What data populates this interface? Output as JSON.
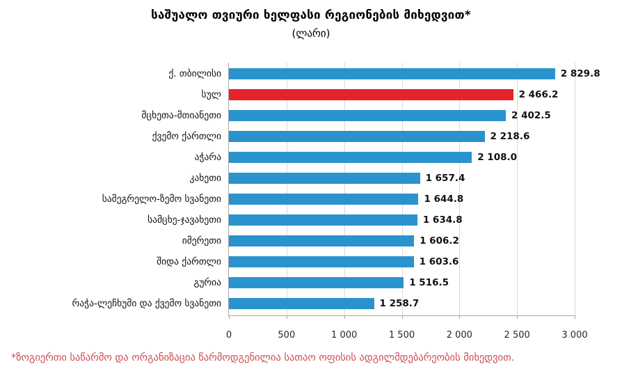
{
  "title": "საშუალო თვიური ხელფასი რეგიონების მიხედვით*",
  "subtitle": "(ლარი)",
  "footnote": "*ზოგიერთი საწარმო და ორგანიზაცია წარმოდგენილია სათაო ოფისის ადგილმდებარეობის მიხედვით.",
  "colors": {
    "bar": "#2a93ce",
    "highlight_bar": "#e8222a",
    "footnote_text": "#c94b50",
    "gridline": "#d9d9d9",
    "axis": "#a6a6a6",
    "label_text": "#111111"
  },
  "chart_data": {
    "type": "bar",
    "orientation": "horizontal",
    "title": "საშუალო თვიური ხელფასი რეგიონების მიხედვით*",
    "subtitle": "(ლარი)",
    "xlabel": "",
    "ylabel": "",
    "xlim": [
      0,
      3000
    ],
    "grid": true,
    "legend": false,
    "categories": [
      "ქ. თბილისი",
      "სულ",
      "მცხეთა-მთიანეთი",
      "ქვემო ქართლი",
      "აჭარა",
      "კახეთი",
      "სამეგრელო-ზემო სვანეთი",
      "სამცხე-ჯავახეთი",
      "იმერეთი",
      "შიდა ქართლი",
      "გურია",
      "რაჭა-ლეჩხუმი და ქვემო სვანეთი"
    ],
    "values": [
      2829.8,
      2466.2,
      2402.5,
      2218.6,
      2108.0,
      1657.4,
      1644.8,
      1634.8,
      1606.2,
      1603.6,
      1516.5,
      1258.7
    ],
    "value_labels": [
      "2 829.8",
      "2 466.2",
      "2 402.5",
      "2 218.6",
      "2 108.0",
      "1 657.4",
      "1 644.8",
      "1 634.8",
      "1 606.2",
      "1 603.6",
      "1 516.5",
      "1 258.7"
    ],
    "highlight_index": 1,
    "x_ticks": [
      0,
      500,
      1000,
      1500,
      2000,
      2500,
      3000
    ],
    "x_tick_labels": [
      "0",
      "500",
      "1 000",
      "1 500",
      "2 000",
      "2 500",
      "3 000"
    ]
  }
}
